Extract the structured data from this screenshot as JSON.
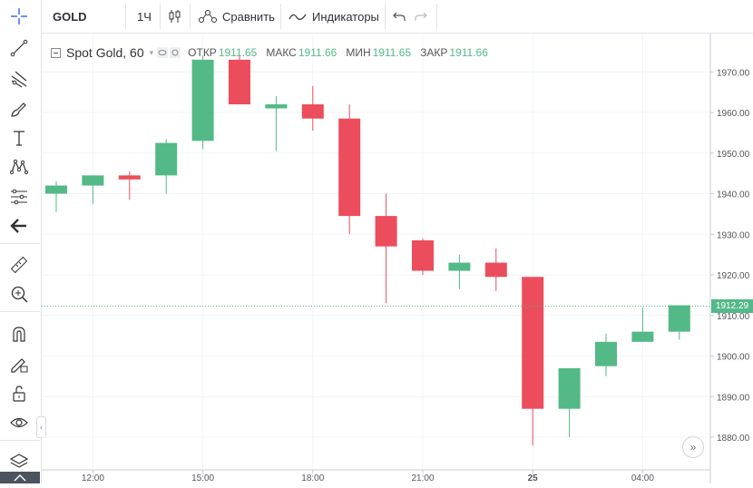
{
  "toolbar": {
    "symbol": "GOLD",
    "interval": "1Ч",
    "compare_label": "Сравнить",
    "indicators_label": "Индикаторы"
  },
  "legend": {
    "title": "Spot Gold, 60",
    "open_label": "ОТКР",
    "open_value": "1911.65",
    "high_label": "МАКС",
    "high_value": "1911.66",
    "low_label": "МИН",
    "low_value": "1911.65",
    "close_label": "ЗАКР",
    "close_value": "1911.66"
  },
  "current_price_label": "1912.29",
  "colors": {
    "up": "#53b987",
    "down": "#eb4d5c",
    "grid": "#f0f3fa",
    "axis_text": "#555555"
  },
  "chart_data": {
    "type": "candlestick",
    "title": "Spot Gold, 60",
    "y_ticks": [
      "1880.00",
      "1890.00",
      "1900.00",
      "1910.00",
      "1920.00",
      "1930.00",
      "1940.00",
      "1950.00",
      "1960.00",
      "1970.00"
    ],
    "x_ticks": [
      "12:00",
      "15:00",
      "18:00",
      "21:00",
      "25",
      "04:00"
    ],
    "ylim": [
      1872,
      1977
    ],
    "current_price": 1912.29,
    "candles": [
      {
        "o": 1940.0,
        "h": 1943.0,
        "l": 1935.5,
        "c": 1942.0
      },
      {
        "o": 1942.0,
        "h": 1944.5,
        "l": 1937.5,
        "c": 1944.5
      },
      {
        "o": 1944.5,
        "h": 1945.5,
        "l": 1938.5,
        "c": 1943.5
      },
      {
        "o": 1944.5,
        "h": 1953.5,
        "l": 1940.0,
        "c": 1952.5
      },
      {
        "o": 1953.0,
        "h": 1974.0,
        "l": 1951.0,
        "c": 1973.0
      },
      {
        "o": 1973.0,
        "h": 1974.0,
        "l": 1962.0,
        "c": 1962.0
      },
      {
        "o": 1961.0,
        "h": 1964.0,
        "l": 1950.5,
        "c": 1962.0
      },
      {
        "o": 1962.0,
        "h": 1966.5,
        "l": 1955.5,
        "c": 1958.5
      },
      {
        "o": 1958.5,
        "h": 1962.0,
        "l": 1930.0,
        "c": 1934.5
      },
      {
        "o": 1934.5,
        "h": 1940.0,
        "l": 1913.0,
        "c": 1927.0
      },
      {
        "o": 1928.5,
        "h": 1929.0,
        "l": 1920.0,
        "c": 1921.0
      },
      {
        "o": 1921.0,
        "h": 1925.0,
        "l": 1916.5,
        "c": 1923.0
      },
      {
        "o": 1923.0,
        "h": 1926.5,
        "l": 1916.0,
        "c": 1919.5
      },
      {
        "o": 1919.5,
        "h": 1919.5,
        "l": 1878.0,
        "c": 1887.0
      },
      {
        "o": 1887.0,
        "h": 1897.0,
        "l": 1880.0,
        "c": 1897.0
      },
      {
        "o": 1897.5,
        "h": 1905.5,
        "l": 1895.0,
        "c": 1903.5
      },
      {
        "o": 1903.5,
        "h": 1912.0,
        "l": 1903.5,
        "c": 1906.0
      },
      {
        "o": 1906.0,
        "h": 1912.5,
        "l": 1904.0,
        "c": 1912.5
      }
    ]
  }
}
